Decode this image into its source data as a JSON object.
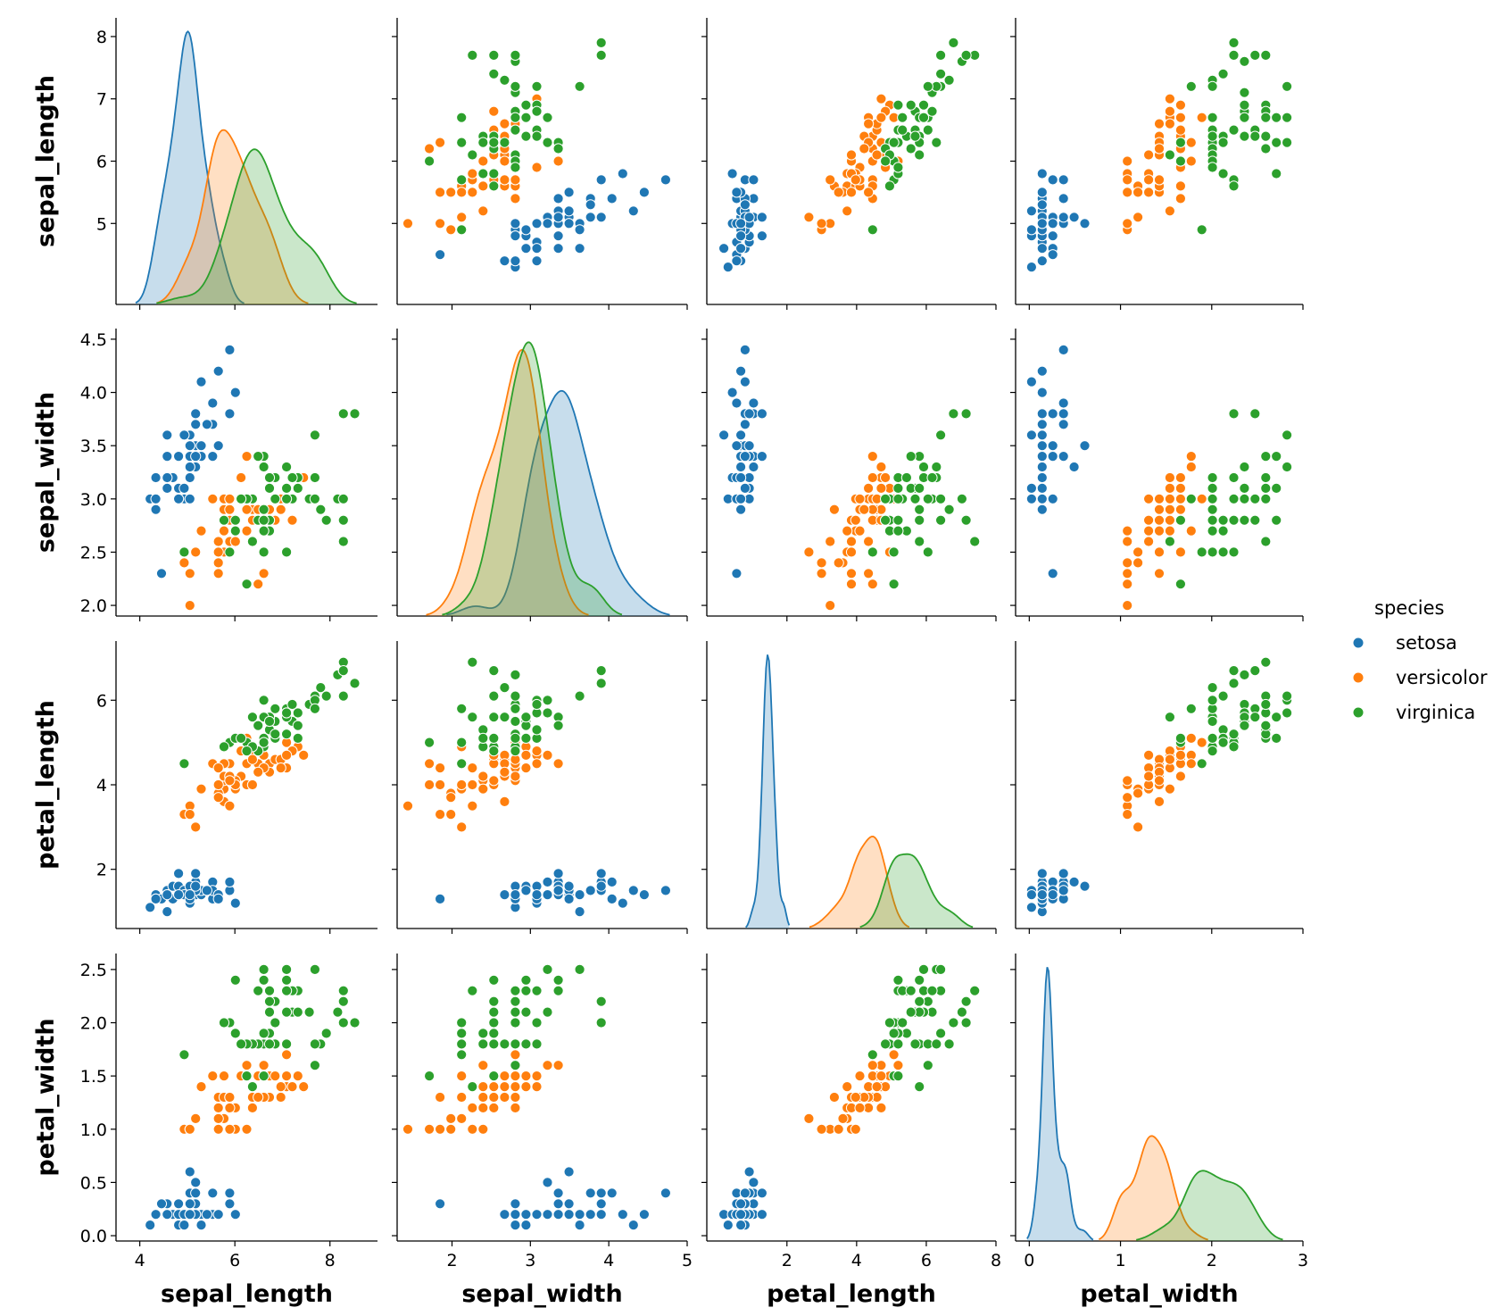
{
  "chart_data": {
    "type": "scatter",
    "variant": "pairplot",
    "variables": [
      "sepal_length",
      "sepal_width",
      "petal_length",
      "petal_width"
    ],
    "axis_labels": {
      "sepal_length": "sepal_length",
      "sepal_width": "sepal_width",
      "petal_length": "petal_length",
      "petal_width": "petal_width"
    },
    "ranges": {
      "sepal_length": [
        3.7,
        8.3
      ],
      "sepal_width": [
        1.9,
        4.6
      ],
      "petal_length": [
        0.6,
        7.4
      ],
      "petal_width": [
        -0.05,
        2.65
      ]
    },
    "ticks": {
      "sepal_length": [
        5,
        6,
        7,
        8
      ],
      "sepal_width": [
        2.0,
        2.5,
        3.0,
        3.5,
        4.0,
        4.5
      ],
      "petal_length": [
        2,
        4,
        6
      ],
      "petal_width": [
        0.0,
        0.5,
        1.0,
        1.5,
        2.0,
        2.5
      ]
    },
    "x_axis_ticks": {
      "sepal_length": [
        4,
        6,
        8
      ],
      "sepal_width": [
        2,
        3,
        4,
        5
      ],
      "petal_length": [
        2,
        4,
        6,
        8
      ],
      "petal_width": [
        0,
        1,
        2,
        3
      ]
    },
    "diag_x_range": {
      "sepal_length": [
        3.5,
        9.0
      ],
      "sepal_width": [
        1.3,
        5.0
      ],
      "petal_length": [
        -0.3,
        8.0
      ],
      "petal_width": [
        -0.15,
        3.0
      ]
    },
    "diagonal": "kde",
    "offdiagonal": "scatter",
    "grid": false,
    "legend": {
      "title": "species",
      "placement": "right"
    },
    "series": [
      {
        "name": "setosa",
        "color": "#1f77b4",
        "sepal_length": [
          5.1,
          4.9,
          4.7,
          4.6,
          5.0,
          5.4,
          4.6,
          5.0,
          4.4,
          4.9,
          5.4,
          4.8,
          4.8,
          4.3,
          5.8,
          5.7,
          5.4,
          5.1,
          5.7,
          5.1,
          5.4,
          5.1,
          4.6,
          5.1,
          4.8,
          5.0,
          5.0,
          5.2,
          5.2,
          4.7,
          4.8,
          5.4,
          5.2,
          5.5,
          4.9,
          5.0,
          5.5,
          4.9,
          4.4,
          5.1,
          5.0,
          4.5,
          4.4,
          5.0,
          5.1,
          4.8,
          5.1,
          4.6,
          5.3,
          5.0
        ],
        "sepal_width": [
          3.5,
          3.0,
          3.2,
          3.1,
          3.6,
          3.9,
          3.4,
          3.4,
          2.9,
          3.1,
          3.7,
          3.4,
          3.0,
          3.0,
          4.0,
          4.4,
          3.9,
          3.5,
          3.8,
          3.8,
          3.4,
          3.7,
          3.6,
          3.3,
          3.4,
          3.0,
          3.4,
          3.5,
          3.4,
          3.2,
          3.1,
          3.4,
          4.1,
          4.2,
          3.1,
          3.2,
          3.5,
          3.6,
          3.0,
          3.4,
          3.5,
          2.3,
          3.2,
          3.5,
          3.8,
          3.0,
          3.8,
          3.2,
          3.7,
          3.3
        ],
        "petal_length": [
          1.4,
          1.4,
          1.3,
          1.5,
          1.4,
          1.7,
          1.4,
          1.5,
          1.4,
          1.5,
          1.5,
          1.6,
          1.4,
          1.1,
          1.2,
          1.5,
          1.3,
          1.4,
          1.7,
          1.5,
          1.7,
          1.5,
          1.0,
          1.7,
          1.9,
          1.6,
          1.6,
          1.5,
          1.4,
          1.6,
          1.6,
          1.5,
          1.5,
          1.4,
          1.5,
          1.2,
          1.3,
          1.4,
          1.3,
          1.5,
          1.3,
          1.3,
          1.3,
          1.6,
          1.9,
          1.4,
          1.6,
          1.4,
          1.5,
          1.4
        ],
        "petal_width": [
          0.2,
          0.2,
          0.2,
          0.2,
          0.2,
          0.4,
          0.3,
          0.2,
          0.2,
          0.1,
          0.2,
          0.2,
          0.1,
          0.1,
          0.2,
          0.4,
          0.4,
          0.3,
          0.3,
          0.3,
          0.2,
          0.4,
          0.2,
          0.5,
          0.2,
          0.2,
          0.4,
          0.2,
          0.2,
          0.2,
          0.2,
          0.4,
          0.1,
          0.2,
          0.2,
          0.2,
          0.2,
          0.1,
          0.2,
          0.2,
          0.3,
          0.3,
          0.2,
          0.6,
          0.4,
          0.3,
          0.2,
          0.2,
          0.2,
          0.2
        ]
      },
      {
        "name": "versicolor",
        "color": "#ff7f0e",
        "sepal_length": [
          7.0,
          6.4,
          6.9,
          5.5,
          6.5,
          5.7,
          6.3,
          4.9,
          6.6,
          5.2,
          5.0,
          5.9,
          6.0,
          6.1,
          5.6,
          6.7,
          5.6,
          5.8,
          6.2,
          5.6,
          5.9,
          6.1,
          6.3,
          6.1,
          6.4,
          6.6,
          6.8,
          6.7,
          6.0,
          5.7,
          5.5,
          5.5,
          5.8,
          6.0,
          5.4,
          6.0,
          6.7,
          6.3,
          5.6,
          5.5,
          5.5,
          6.1,
          5.8,
          5.0,
          5.6,
          5.7,
          5.7,
          6.2,
          5.1,
          5.7
        ],
        "sepal_width": [
          3.2,
          3.2,
          3.1,
          2.3,
          2.8,
          2.8,
          3.3,
          2.4,
          2.9,
          2.7,
          2.0,
          3.0,
          2.2,
          2.9,
          2.9,
          3.1,
          3.0,
          2.7,
          2.2,
          2.5,
          3.2,
          2.8,
          2.5,
          2.8,
          2.9,
          3.0,
          2.8,
          3.0,
          2.9,
          2.6,
          2.4,
          2.4,
          2.7,
          2.7,
          3.0,
          3.4,
          3.1,
          2.3,
          3.0,
          2.5,
          2.6,
          3.0,
          2.6,
          2.3,
          2.7,
          3.0,
          2.9,
          2.9,
          2.5,
          2.8
        ],
        "petal_length": [
          4.7,
          4.5,
          4.9,
          4.0,
          4.6,
          4.5,
          4.7,
          3.3,
          4.6,
          3.9,
          3.5,
          4.2,
          4.0,
          4.7,
          3.6,
          4.4,
          4.5,
          4.1,
          4.5,
          3.9,
          4.8,
          4.0,
          4.9,
          4.7,
          4.3,
          4.4,
          4.8,
          5.0,
          4.5,
          3.5,
          3.8,
          3.7,
          3.9,
          5.1,
          4.5,
          4.5,
          4.7,
          4.4,
          4.1,
          4.0,
          4.4,
          4.6,
          4.0,
          3.3,
          4.2,
          4.2,
          4.2,
          4.3,
          3.0,
          4.1
        ],
        "petal_width": [
          1.4,
          1.5,
          1.5,
          1.3,
          1.5,
          1.3,
          1.6,
          1.0,
          1.3,
          1.4,
          1.0,
          1.5,
          1.0,
          1.4,
          1.3,
          1.4,
          1.5,
          1.0,
          1.5,
          1.1,
          1.8,
          1.3,
          1.5,
          1.2,
          1.3,
          1.4,
          1.4,
          1.7,
          1.5,
          1.0,
          1.1,
          1.0,
          1.2,
          1.6,
          1.5,
          1.6,
          1.5,
          1.3,
          1.3,
          1.3,
          1.2,
          1.4,
          1.2,
          1.0,
          1.3,
          1.2,
          1.3,
          1.3,
          1.1,
          1.3
        ]
      },
      {
        "name": "virginica",
        "color": "#2ca02c",
        "sepal_length": [
          6.3,
          5.8,
          7.1,
          6.3,
          6.5,
          7.6,
          4.9,
          7.3,
          6.7,
          7.2,
          6.5,
          6.4,
          6.8,
          5.7,
          5.8,
          6.4,
          6.5,
          7.7,
          7.7,
          6.0,
          6.9,
          5.6,
          7.7,
          6.3,
          6.7,
          7.2,
          6.2,
          6.1,
          6.4,
          7.2,
          7.4,
          7.9,
          6.4,
          6.3,
          6.1,
          7.7,
          6.3,
          6.4,
          6.0,
          6.9,
          6.7,
          6.9,
          5.8,
          6.8,
          6.7,
          6.7,
          6.3,
          6.5,
          6.2,
          5.9
        ],
        "sepal_width": [
          3.3,
          2.7,
          3.0,
          2.9,
          3.0,
          3.0,
          2.5,
          2.9,
          2.5,
          3.6,
          3.2,
          2.7,
          3.0,
          2.5,
          2.8,
          3.2,
          3.0,
          3.8,
          2.6,
          2.2,
          3.2,
          2.8,
          2.8,
          2.7,
          3.3,
          3.2,
          2.8,
          3.0,
          2.8,
          3.0,
          2.8,
          3.8,
          2.8,
          2.8,
          2.6,
          3.0,
          3.4,
          3.1,
          3.0,
          3.1,
          3.1,
          3.1,
          2.7,
          3.2,
          3.3,
          3.0,
          2.5,
          3.0,
          3.4,
          3.0
        ],
        "petal_length": [
          6.0,
          5.1,
          5.9,
          5.6,
          5.8,
          6.6,
          4.5,
          6.3,
          5.8,
          6.1,
          5.1,
          5.3,
          5.5,
          5.0,
          5.1,
          5.3,
          5.5,
          6.7,
          6.9,
          5.0,
          5.7,
          4.9,
          6.7,
          4.9,
          5.7,
          6.0,
          4.8,
          4.9,
          5.6,
          5.8,
          6.1,
          6.4,
          5.6,
          5.1,
          5.6,
          6.1,
          5.6,
          5.5,
          4.8,
          5.4,
          5.6,
          5.1,
          5.1,
          5.9,
          5.7,
          5.2,
          5.0,
          5.2,
          5.4,
          5.1
        ],
        "petal_width": [
          2.5,
          1.9,
          2.1,
          1.8,
          2.2,
          2.1,
          1.7,
          1.8,
          1.8,
          2.5,
          2.0,
          1.9,
          2.1,
          2.0,
          2.4,
          2.3,
          1.8,
          2.2,
          2.3,
          1.5,
          2.3,
          2.0,
          2.0,
          1.8,
          2.1,
          1.8,
          1.8,
          1.8,
          2.1,
          1.6,
          1.9,
          2.0,
          2.2,
          1.5,
          1.4,
          2.3,
          2.4,
          1.8,
          1.8,
          2.1,
          2.4,
          2.3,
          1.9,
          2.3,
          2.5,
          2.3,
          1.9,
          2.0,
          2.3,
          1.8
        ]
      }
    ]
  }
}
